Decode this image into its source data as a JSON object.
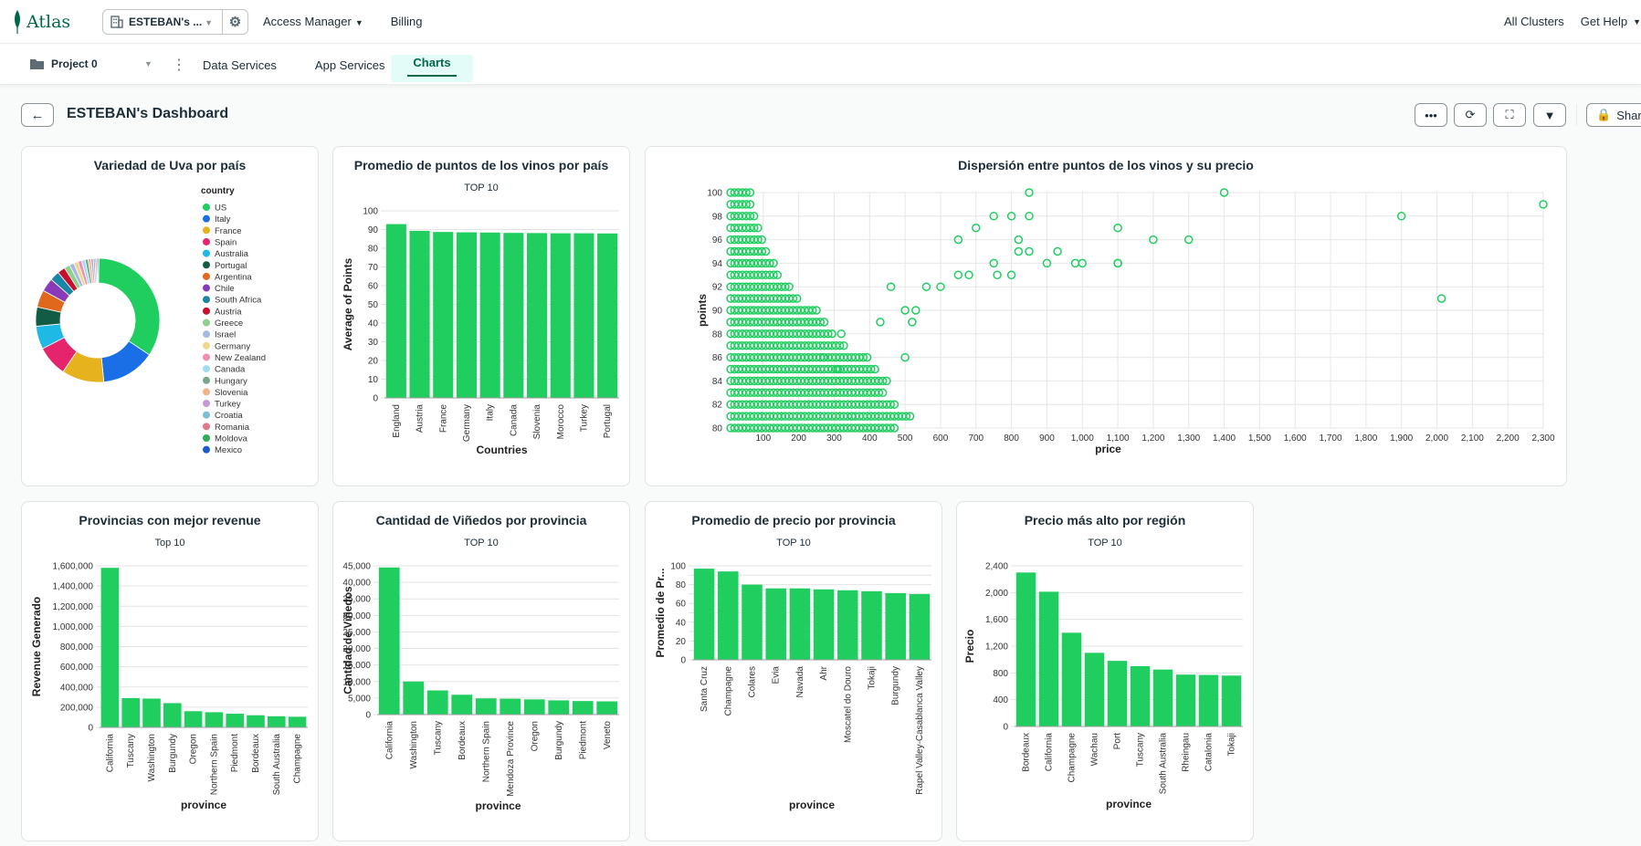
{
  "app": {
    "logo_text": "Atlas",
    "org_name": "ESTEBAN's ...",
    "access_manager": "Access Manager",
    "billing": "Billing",
    "all_clusters": "All Clusters",
    "get_help": "Get Help"
  },
  "subnav": {
    "project": "Project 0",
    "tabs": [
      "Data Services",
      "App Services",
      "Charts"
    ],
    "active_tab": "Charts"
  },
  "dashboard": {
    "title": "ESTEBAN's Dashboard",
    "share": "Share"
  },
  "colors": {
    "brand": "#00684a",
    "bar": "#1fce5f",
    "accent_bg": "#e3fcf7"
  },
  "charts": [
    {
      "title": "Variedad de Uva por país",
      "subtitle": ""
    },
    {
      "title": "Promedio de puntos de los vinos por país",
      "subtitle": "TOP 10"
    },
    {
      "title": "Dispersión entre puntos de los vinos y su precio",
      "subtitle": ""
    },
    {
      "title": "Provincias con mejor revenue",
      "subtitle": "Top 10"
    },
    {
      "title": "Cantidad de Viñedos por provincia",
      "subtitle": "TOP 10"
    },
    {
      "title": "Promedio de precio por provincia",
      "subtitle": "TOP 10"
    },
    {
      "title": "Precio más alto por región",
      "subtitle": "TOP 10"
    }
  ],
  "chart_data": [
    {
      "type": "pie",
      "legend_title": "country",
      "categories": [
        "US",
        "Italy",
        "France",
        "Spain",
        "Australia",
        "Portugal",
        "Argentina",
        "Chile",
        "South Africa",
        "Austria",
        "Greece",
        "Israel",
        "Germany",
        "New Zealand",
        "Canada",
        "Hungary",
        "Slovenia",
        "Turkey",
        "Croatia",
        "Romania",
        "Moldova",
        "Mexico"
      ],
      "colors": [
        "#1fce5f",
        "#1a6ee6",
        "#e6b31e",
        "#e6246e",
        "#1fb9e6",
        "#125c46",
        "#e0681c",
        "#8a3ab9",
        "#1a86a6",
        "#c8102e",
        "#8fd18a",
        "#a6b8e6",
        "#f0d88a",
        "#f28cb1",
        "#9fdcf2",
        "#7aa68f",
        "#f2b28a",
        "#c39ad6",
        "#7ac0d4",
        "#e07a8a",
        "#2eae52",
        "#1a5acb"
      ],
      "values": [
        34,
        14,
        11,
        8,
        6,
        5,
        4.5,
        3.5,
        2.5,
        2,
        1.5,
        1.2,
        1.1,
        1,
        0.9,
        0.8,
        0.7,
        0.6,
        0.5,
        0.4,
        0.3,
        0.3
      ]
    },
    {
      "type": "bar",
      "categories": [
        "England",
        "Austria",
        "France",
        "Germany",
        "Italy",
        "Canada",
        "Slovenia",
        "Morocco",
        "Turkey",
        "Portugal"
      ],
      "values": [
        92.9,
        89.3,
        88.7,
        88.5,
        88.4,
        88.2,
        88.1,
        88.0,
        88.0,
        87.9
      ],
      "ylabel": "Average of Points",
      "xlabel": "Countries",
      "ylim": [
        0,
        100
      ],
      "ticks": [
        0,
        10,
        20,
        30,
        40,
        50,
        60,
        70,
        80,
        90,
        100
      ]
    },
    {
      "type": "scatter",
      "xlabel": "price",
      "ylabel": "points",
      "xlim": [
        0,
        2300
      ],
      "ylim": [
        80,
        100
      ],
      "xticks": [
        100,
        200,
        300,
        400,
        500,
        600,
        700,
        800,
        900,
        1000,
        1100,
        1200,
        1300,
        1400,
        1500,
        1600,
        1700,
        1800,
        1900,
        2000,
        2100,
        2200,
        2300
      ],
      "yticks": [
        80,
        82,
        84,
        86,
        88,
        90,
        92,
        94,
        96,
        98,
        100
      ],
      "points": [
        [
          850,
          100
        ],
        [
          1400,
          100
        ],
        [
          2300,
          99
        ],
        [
          1900,
          98
        ],
        [
          850,
          98
        ],
        [
          800,
          98
        ],
        [
          750,
          98
        ],
        [
          1100,
          97
        ],
        [
          700,
          97
        ],
        [
          1200,
          96
        ],
        [
          1300,
          96
        ],
        [
          820,
          96
        ],
        [
          650,
          96
        ],
        [
          1000,
          94
        ],
        [
          1100,
          94
        ],
        [
          980,
          94
        ],
        [
          900,
          94
        ],
        [
          750,
          94
        ],
        [
          820,
          95
        ],
        [
          1100,
          94
        ],
        [
          2013,
          91
        ],
        [
          500,
          90
        ],
        [
          530,
          90
        ],
        [
          350,
          81
        ],
        [
          500,
          86
        ],
        [
          270,
          86
        ],
        [
          310,
          85
        ],
        [
          520,
          89
        ],
        [
          320,
          88
        ],
        [
          430,
          89
        ],
        [
          850,
          95
        ],
        [
          930,
          95
        ],
        [
          760,
          93
        ],
        [
          800,
          93
        ],
        [
          680,
          93
        ],
        [
          650,
          93
        ],
        [
          600,
          92
        ],
        [
          560,
          92
        ],
        [
          460,
          92
        ]
      ],
      "dense_price_max": [
        480,
        520,
        470,
        440,
        450,
        420,
        400,
        330,
        300,
        280,
        250,
        200,
        180,
        150,
        130,
        110,
        100,
        90,
        80,
        70,
        70
      ]
    },
    {
      "type": "bar",
      "categories": [
        "California",
        "Tuscany",
        "Washington",
        "Burgundy",
        "Oregon",
        "Northern Spain",
        "Piedmont",
        "Bordeaux",
        "South Australia",
        "Champagne"
      ],
      "values": [
        1580000,
        290000,
        285000,
        240000,
        160000,
        150000,
        135000,
        120000,
        110000,
        105000
      ],
      "ylabel": "Revenue Generado",
      "xlabel": "province",
      "ylim": [
        0,
        1600000
      ],
      "ticks": [
        0,
        200000,
        400000,
        600000,
        800000,
        1000000,
        1200000,
        1400000,
        1600000
      ],
      "tick_labels": [
        "0",
        "200,000",
        "400,000",
        "600,000",
        "800,000",
        "1,000,000",
        "1,200,000",
        "1,400,000",
        "1,600,000"
      ]
    },
    {
      "type": "bar",
      "categories": [
        "California",
        "Washington",
        "Tuscany",
        "Bordeaux",
        "Northern Spain",
        "Mendoza Province",
        "Oregon",
        "Burgundy",
        "Piedmont",
        "Veneto"
      ],
      "values": [
        44500,
        10000,
        7300,
        6000,
        4900,
        4800,
        4600,
        4300,
        4100,
        4000
      ],
      "ylabel": "Cantidad de Viñedos",
      "xlabel": "province",
      "ylim": [
        0,
        45000
      ],
      "ticks": [
        0,
        5000,
        10000,
        15000,
        20000,
        25000,
        30000,
        35000,
        40000,
        45000
      ],
      "tick_labels": [
        "0",
        "5,000",
        "10,000",
        "15,000",
        "20,000",
        "25,000",
        "30,000",
        "35,000",
        "40,000",
        "45,000"
      ]
    },
    {
      "type": "bar",
      "categories": [
        "Santa Cruz",
        "Champagne",
        "Colares",
        "Evia",
        "Navada",
        "Ahr",
        "Moscatel do Douro",
        "Tokaji",
        "Burgundy",
        "Rapel Valley-Casablanca Valley"
      ],
      "values": [
        97,
        94,
        80,
        76,
        76,
        75,
        74,
        73,
        71,
        70
      ],
      "ylabel": "Promedio de Pr...",
      "xlabel": "province",
      "ylim": [
        0,
        100
      ],
      "ticks": [
        0,
        10,
        20,
        30,
        40,
        50,
        60,
        70,
        80,
        90,
        100
      ],
      "tick_labels": [
        "0",
        "",
        "20",
        "",
        "40",
        "",
        "60",
        "",
        "80",
        "",
        "100"
      ]
    },
    {
      "type": "bar",
      "categories": [
        "Bordeaux",
        "California",
        "Champagne",
        "Wachau",
        "Port",
        "Tuscany",
        "South Australia",
        "Rheingau",
        "Catalonia",
        "Tokaji"
      ],
      "values": [
        2300,
        2013,
        1400,
        1100,
        980,
        900,
        850,
        775,
        770,
        760
      ],
      "ylabel": "Precio",
      "xlabel": "province",
      "ylim": [
        0,
        2400
      ],
      "ticks": [
        0,
        400,
        800,
        1200,
        1600,
        2000,
        2400
      ],
      "tick_labels": [
        "0",
        "400",
        "800",
        "1,200",
        "1,600",
        "2,000",
        "2,400"
      ]
    }
  ]
}
